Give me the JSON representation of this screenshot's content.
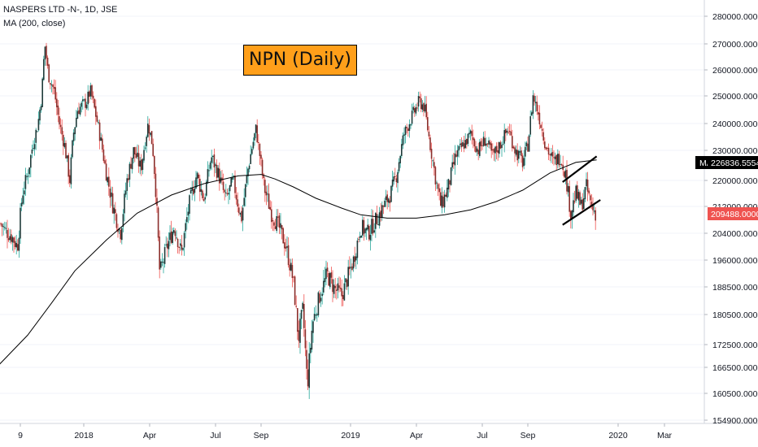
{
  "legend": {
    "symbol_line": "NASPERS LTD -N-, 1D, JSE",
    "indicator_line": "MA (200, close)"
  },
  "annotation": {
    "title": "NPN (Daily)",
    "color": "#ff9f1a"
  },
  "markers": {
    "ma_label": "MA",
    "ma_value": "226836.5554",
    "last_value": "209488.0000",
    "ma_color": "#000000",
    "last_color": "#ef5350"
  },
  "colors": {
    "up": "#26a69a",
    "down": "#ef5350",
    "dark_body": "#1f3b3a",
    "ma": "#000000"
  },
  "chart_data": {
    "type": "candlestick",
    "ylim": [
      153500,
      284000
    ],
    "y_ticks": [
      280000,
      270000,
      260000,
      250000,
      240000,
      230000,
      220000,
      212000,
      204000,
      196000,
      188500,
      180500,
      172500,
      166500,
      160500,
      154900
    ],
    "y_tick_labels": [
      "280000.0000",
      "270000.0000",
      "260000.0000",
      "250000.0000",
      "240000.0000",
      "230000.0000",
      "220000.0000",
      "212000.0000",
      "204000.0000",
      "196000.0000",
      "188500.0000",
      "180500.0000",
      "172500.0000",
      "166500.0000",
      "160500.0000",
      "154900.0000"
    ],
    "x_ticks": [
      "9",
      "2018",
      "Apr",
      "Jul",
      "Sep",
      "2019",
      "Apr",
      "Jul",
      "Sep",
      "2020",
      "Mar"
    ],
    "x_tick_dates": [
      "2017-09-01",
      "2018-01-01",
      "2018-04-01",
      "2018-07-01",
      "2018-09-01",
      "2019-01-01",
      "2019-04-01",
      "2019-07-01",
      "2019-09-01",
      "2020-01-01",
      "2020-03-01"
    ],
    "x_range": [
      "2017-08-01",
      "2020-04-15"
    ],
    "price_path": [
      [
        "2017-08-01",
        208000
      ],
      [
        "2017-08-10",
        205000
      ],
      [
        "2017-08-20",
        203000
      ],
      [
        "2017-08-28",
        200000
      ],
      [
        "2017-09-05",
        216000
      ],
      [
        "2017-09-15",
        222000
      ],
      [
        "2017-09-25",
        232000
      ],
      [
        "2017-10-05",
        240000
      ],
      [
        "2017-10-12",
        250000
      ],
      [
        "2017-10-18",
        270000
      ],
      [
        "2017-10-25",
        258000
      ],
      [
        "2017-11-05",
        252000
      ],
      [
        "2017-11-15",
        240000
      ],
      [
        "2017-11-25",
        232000
      ],
      [
        "2017-12-05",
        220000
      ],
      [
        "2017-12-12",
        236000
      ],
      [
        "2017-12-20",
        245000
      ],
      [
        "2018-01-05",
        248000
      ],
      [
        "2018-01-10",
        252000
      ],
      [
        "2018-01-20",
        240000
      ],
      [
        "2018-02-01",
        222000
      ],
      [
        "2018-02-10",
        212000
      ],
      [
        "2018-02-20",
        204000
      ],
      [
        "2018-03-01",
        220000
      ],
      [
        "2018-03-10",
        230000
      ],
      [
        "2018-03-20",
        224000
      ],
      [
        "2018-03-30",
        240000
      ],
      [
        "2018-04-05",
        232000
      ],
      [
        "2018-04-10",
        215000
      ],
      [
        "2018-04-15",
        192000
      ],
      [
        "2018-04-25",
        200000
      ],
      [
        "2018-05-05",
        206000
      ],
      [
        "2018-05-15",
        198000
      ],
      [
        "2018-05-25",
        212000
      ],
      [
        "2018-06-05",
        222000
      ],
      [
        "2018-06-15",
        214000
      ],
      [
        "2018-06-25",
        228000
      ],
      [
        "2018-07-05",
        222000
      ],
      [
        "2018-07-15",
        214000
      ],
      [
        "2018-07-25",
        220000
      ],
      [
        "2018-08-05",
        208000
      ],
      [
        "2018-08-15",
        225000
      ],
      [
        "2018-08-25",
        238000
      ],
      [
        "2018-09-05",
        218000
      ],
      [
        "2018-09-15",
        210000
      ],
      [
        "2018-09-25",
        206000
      ],
      [
        "2018-10-05",
        200000
      ],
      [
        "2018-10-15",
        190000
      ],
      [
        "2018-10-22",
        174000
      ],
      [
        "2018-10-28",
        182000
      ],
      [
        "2018-11-03",
        162000
      ],
      [
        "2018-11-10",
        178000
      ],
      [
        "2018-11-20",
        186000
      ],
      [
        "2018-11-30",
        192000
      ],
      [
        "2018-12-10",
        188000
      ],
      [
        "2018-12-20",
        186000
      ],
      [
        "2019-01-05",
        196000
      ],
      [
        "2019-01-15",
        206000
      ],
      [
        "2019-01-25",
        204000
      ],
      [
        "2019-02-05",
        208000
      ],
      [
        "2019-02-15",
        212000
      ],
      [
        "2019-02-25",
        216000
      ],
      [
        "2019-03-05",
        222000
      ],
      [
        "2019-03-15",
        236000
      ],
      [
        "2019-03-25",
        242000
      ],
      [
        "2019-04-05",
        248000
      ],
      [
        "2019-04-12",
        246000
      ],
      [
        "2019-04-20",
        232000
      ],
      [
        "2019-04-28",
        220000
      ],
      [
        "2019-05-05",
        212000
      ],
      [
        "2019-05-15",
        218000
      ],
      [
        "2019-05-25",
        228000
      ],
      [
        "2019-06-05",
        232000
      ],
      [
        "2019-06-15",
        236000
      ],
      [
        "2019-06-25",
        230000
      ],
      [
        "2019-07-05",
        234000
      ],
      [
        "2019-07-15",
        228000
      ],
      [
        "2019-07-25",
        232000
      ],
      [
        "2019-08-05",
        238000
      ],
      [
        "2019-08-15",
        230000
      ],
      [
        "2019-08-25",
        226000
      ],
      [
        "2019-09-01",
        232000
      ],
      [
        "2019-09-08",
        250000
      ],
      [
        "2019-09-15",
        244000
      ],
      [
        "2019-09-25",
        232000
      ],
      [
        "2019-10-05",
        226000
      ],
      [
        "2019-10-15",
        228000
      ],
      [
        "2019-10-22",
        222000
      ],
      [
        "2019-10-29",
        210000
      ],
      [
        "2019-11-05",
        216000
      ],
      [
        "2019-11-12",
        212000
      ],
      [
        "2019-11-19",
        218000
      ],
      [
        "2019-11-26",
        212000
      ],
      [
        "2019-12-03",
        209488
      ]
    ],
    "ma_200": [
      [
        "2017-08-01",
        167000
      ],
      [
        "2017-09-15",
        175000
      ],
      [
        "2017-11-01",
        184000
      ],
      [
        "2017-12-15",
        193000
      ],
      [
        "2018-02-01",
        202000
      ],
      [
        "2018-03-15",
        210000
      ],
      [
        "2018-05-01",
        215500
      ],
      [
        "2018-06-15",
        219000
      ],
      [
        "2018-08-01",
        221500
      ],
      [
        "2018-09-01",
        222000
      ],
      [
        "2018-09-20",
        220500
      ],
      [
        "2018-10-15",
        218000
      ],
      [
        "2018-11-15",
        214500
      ],
      [
        "2018-12-20",
        211500
      ],
      [
        "2019-01-15",
        209500
      ],
      [
        "2019-02-20",
        208500
      ],
      [
        "2019-04-01",
        208500
      ],
      [
        "2019-05-10",
        209500
      ],
      [
        "2019-06-15",
        211000
      ],
      [
        "2019-07-20",
        213500
      ],
      [
        "2019-08-25",
        217000
      ],
      [
        "2019-10-01",
        222500
      ],
      [
        "2019-11-05",
        226000
      ],
      [
        "2019-12-03",
        226836.5554
      ]
    ],
    "channel_lines": [
      [
        [
          "2019-10-18",
          219500
        ],
        [
          "2019-12-03",
          228000
        ]
      ],
      [
        [
          "2019-10-18",
          206500
        ],
        [
          "2019-12-08",
          214000
        ]
      ]
    ]
  }
}
